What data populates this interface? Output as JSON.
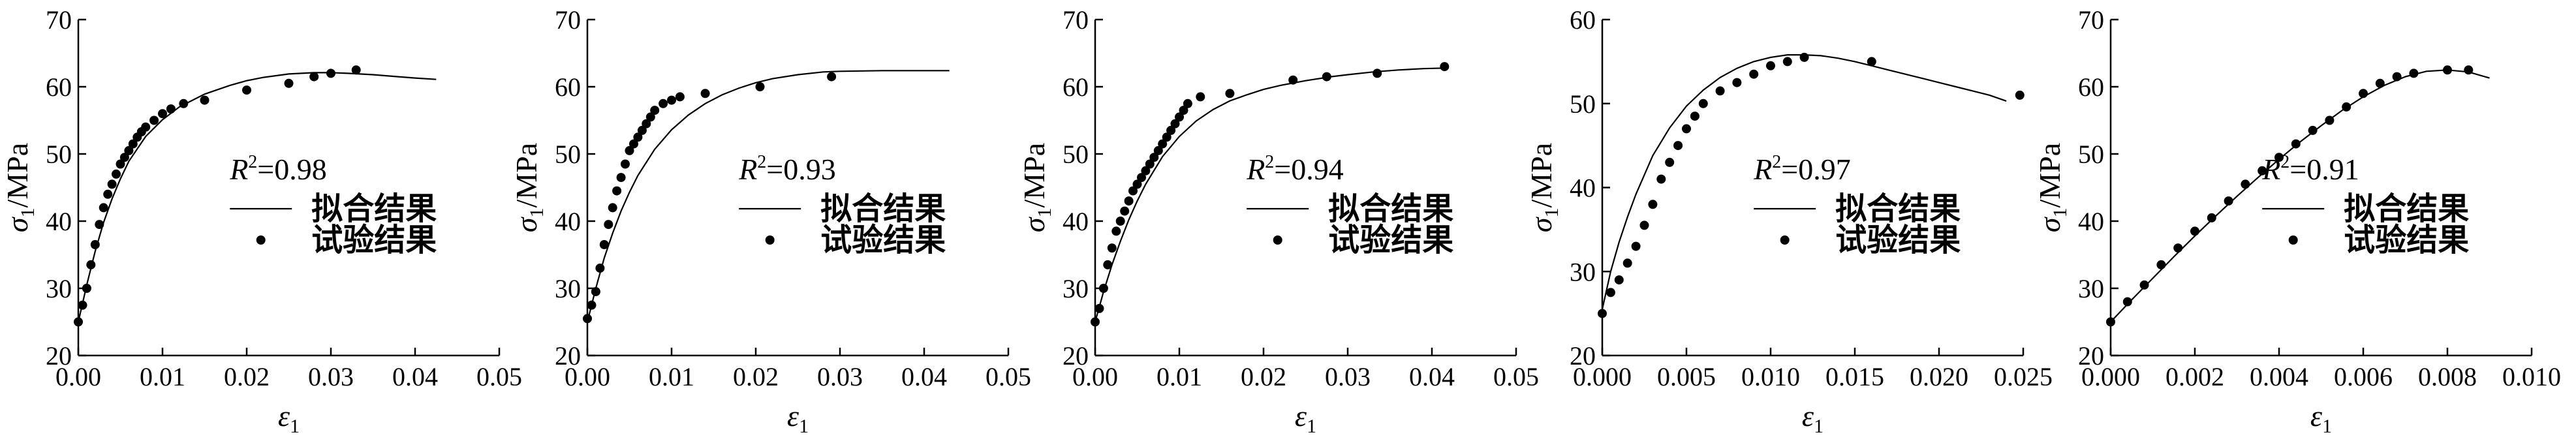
{
  "chart_data": [
    {
      "type": "scatter",
      "ylabel": "σ1/MPa",
      "xlabel": "ε1",
      "ylim": [
        20,
        70
      ],
      "yticks": [
        20,
        30,
        40,
        50,
        60,
        70
      ],
      "xlim": [
        0,
        0.05
      ],
      "xticks": [
        0,
        0.01,
        0.02,
        0.03,
        0.04,
        0.05
      ],
      "xtick_labels": [
        "0.00",
        "0.01",
        "0.02",
        "0.03",
        "0.04",
        "0.05"
      ],
      "r2": "0.98",
      "legend": {
        "fit": "拟合结果",
        "test": "试验结果"
      },
      "series": [
        {
          "name": "拟合结果",
          "kind": "line",
          "x": [
            0,
            0.001,
            0.002,
            0.003,
            0.004,
            0.005,
            0.006,
            0.008,
            0.01,
            0.012,
            0.015,
            0.018,
            0.02,
            0.022,
            0.025,
            0.028,
            0.03,
            0.032,
            0.035,
            0.038,
            0.04,
            0.0425
          ],
          "y": [
            25,
            30.5,
            35.5,
            39.8,
            43.3,
            46.3,
            48.9,
            52.6,
            55.1,
            57,
            58.9,
            60.2,
            60.9,
            61.4,
            61.9,
            62.1,
            62.1,
            62,
            61.8,
            61.5,
            61.3,
            61.1
          ]
        },
        {
          "name": "试验结果",
          "kind": "points",
          "x": [
            0.0,
            0.0005,
            0.001,
            0.0015,
            0.002,
            0.0025,
            0.003,
            0.0035,
            0.004,
            0.0045,
            0.005,
            0.0055,
            0.006,
            0.0065,
            0.007,
            0.0075,
            0.008,
            0.009,
            0.01,
            0.011,
            0.0125,
            0.015,
            0.02,
            0.025,
            0.028,
            0.03,
            0.033
          ],
          "y": [
            25,
            27.5,
            30,
            33.5,
            36.5,
            39.5,
            42,
            44,
            45.5,
            47,
            48.5,
            49.5,
            50.5,
            51.5,
            52.5,
            53.3,
            54,
            55,
            56,
            56.7,
            57.5,
            58,
            59.5,
            60.5,
            61.5,
            62,
            62.5
          ]
        }
      ]
    },
    {
      "type": "scatter",
      "ylabel": "σ1/MPa",
      "xlabel": "ε1",
      "ylim": [
        20,
        70
      ],
      "yticks": [
        20,
        30,
        40,
        50,
        60,
        70
      ],
      "xlim": [
        0,
        0.05
      ],
      "xticks": [
        0,
        0.01,
        0.02,
        0.03,
        0.04,
        0.05
      ],
      "xtick_labels": [
        "0.00",
        "0.01",
        "0.02",
        "0.03",
        "0.04",
        "0.05"
      ],
      "r2": "0.93",
      "legend": {
        "fit": "拟合结果",
        "test": "试验结果"
      },
      "series": [
        {
          "name": "拟合结果",
          "kind": "line",
          "x": [
            0,
            0.001,
            0.002,
            0.003,
            0.004,
            0.005,
            0.006,
            0.008,
            0.01,
            0.012,
            0.014,
            0.016,
            0.018,
            0.02,
            0.022,
            0.025,
            0.028,
            0.03,
            0.035,
            0.04,
            0.043
          ],
          "y": [
            25,
            30,
            34.5,
            38.2,
            41.5,
            44.3,
            46.8,
            50.7,
            53.6,
            55.8,
            57.5,
            58.8,
            59.8,
            60.6,
            61.2,
            61.8,
            62.2,
            62.3,
            62.4,
            62.4,
            62.4
          ]
        },
        {
          "name": "试验结果",
          "kind": "points",
          "x": [
            0.0,
            0.0005,
            0.001,
            0.0015,
            0.002,
            0.0025,
            0.003,
            0.0035,
            0.004,
            0.0045,
            0.005,
            0.0055,
            0.006,
            0.0065,
            0.007,
            0.0075,
            0.008,
            0.009,
            0.01,
            0.011,
            0.014,
            0.0205,
            0.029
          ],
          "y": [
            25.5,
            27.5,
            29.5,
            33,
            36.5,
            39.5,
            42,
            44.5,
            46.5,
            48.5,
            50.5,
            51.5,
            52.5,
            53.5,
            54.5,
            55.5,
            56.5,
            57.5,
            58,
            58.5,
            59,
            60,
            61.5
          ]
        }
      ]
    },
    {
      "type": "scatter",
      "ylabel": "σ1/MPa",
      "xlabel": "ε1",
      "ylim": [
        20,
        70
      ],
      "yticks": [
        20,
        30,
        40,
        50,
        60,
        70
      ],
      "xlim": [
        0,
        0.05
      ],
      "xticks": [
        0,
        0.01,
        0.02,
        0.03,
        0.04,
        0.05
      ],
      "xtick_labels": [
        "0.00",
        "0.01",
        "0.02",
        "0.03",
        "0.04",
        "0.05"
      ],
      "r2": "0.94",
      "legend": {
        "fit": "拟合结果",
        "test": "试验结果"
      },
      "series": [
        {
          "name": "拟合结果",
          "kind": "line",
          "x": [
            0,
            0.001,
            0.002,
            0.003,
            0.004,
            0.005,
            0.006,
            0.008,
            0.01,
            0.012,
            0.014,
            0.016,
            0.018,
            0.02,
            0.022,
            0.025,
            0.028,
            0.03,
            0.033,
            0.036,
            0.039,
            0.042
          ],
          "y": [
            25,
            29.5,
            33.5,
            37,
            40.2,
            43,
            45.5,
            49.6,
            52.6,
            54.9,
            56.6,
            57.9,
            58.8,
            59.6,
            60.2,
            60.9,
            61.5,
            61.8,
            62.2,
            62.5,
            62.7,
            62.8
          ]
        },
        {
          "name": "试验结果",
          "kind": "points",
          "x": [
            0.0,
            0.0005,
            0.001,
            0.0015,
            0.002,
            0.0025,
            0.003,
            0.0035,
            0.004,
            0.0045,
            0.005,
            0.0055,
            0.006,
            0.0065,
            0.007,
            0.0075,
            0.008,
            0.0085,
            0.009,
            0.0095,
            0.01,
            0.0105,
            0.011,
            0.0125,
            0.016,
            0.0235,
            0.0275,
            0.0335,
            0.0415
          ],
          "y": [
            25,
            27,
            30,
            33.5,
            36,
            38.5,
            40,
            41.5,
            43,
            44.5,
            45.5,
            46.5,
            47.5,
            48.5,
            49.5,
            50.5,
            51.5,
            52.5,
            53.5,
            54.5,
            55.5,
            56.5,
            57.5,
            58.5,
            59,
            61,
            61.5,
            62,
            63
          ]
        }
      ]
    },
    {
      "type": "scatter",
      "ylabel": "σ1/MPa",
      "xlabel": "ε1",
      "ylim": [
        20,
        60
      ],
      "yticks": [
        20,
        30,
        40,
        50,
        60
      ],
      "xlim": [
        0,
        0.025
      ],
      "xticks": [
        0,
        0.005,
        0.01,
        0.015,
        0.02,
        0.025
      ],
      "xtick_labels": [
        "0.000",
        "0.005",
        "0.010",
        "0.015",
        "0.020",
        "0.025"
      ],
      "r2": "0.97",
      "legend": {
        "fit": "拟合结果",
        "test": "试验结果"
      },
      "series": [
        {
          "name": "拟合结果",
          "kind": "line",
          "x": [
            0,
            0.0005,
            0.001,
            0.0015,
            0.002,
            0.003,
            0.004,
            0.005,
            0.006,
            0.007,
            0.008,
            0.009,
            0.01,
            0.011,
            0.012,
            0.013,
            0.014,
            0.015,
            0.016,
            0.017,
            0.018,
            0.019,
            0.02,
            0.021,
            0.022,
            0.023,
            0.024
          ],
          "y": [
            25.5,
            30,
            33.5,
            36.5,
            39.2,
            43.8,
            47.1,
            49.7,
            51.6,
            53.1,
            54.2,
            55,
            55.5,
            55.8,
            55.8,
            55.7,
            55.4,
            55,
            54.5,
            54,
            53.5,
            53,
            52.5,
            52,
            51.5,
            51,
            50.3
          ]
        },
        {
          "name": "试验结果",
          "kind": "points",
          "x": [
            0.0,
            0.0005,
            0.001,
            0.0015,
            0.002,
            0.0025,
            0.003,
            0.0035,
            0.004,
            0.0045,
            0.005,
            0.0055,
            0.006,
            0.007,
            0.008,
            0.009,
            0.01,
            0.011,
            0.012,
            0.016,
            0.0248
          ],
          "y": [
            25,
            27.5,
            29,
            31,
            33,
            35.5,
            38,
            41,
            43,
            45,
            47,
            48.5,
            50,
            51.5,
            52.5,
            53.5,
            54.5,
            55,
            55.5,
            55,
            51
          ]
        }
      ]
    },
    {
      "type": "scatter",
      "ylabel": "σ1/MPa",
      "xlabel": "ε1",
      "ylim": [
        20,
        70
      ],
      "yticks": [
        20,
        30,
        40,
        50,
        60,
        70
      ],
      "xlim": [
        0,
        0.01
      ],
      "xticks": [
        0,
        0.002,
        0.004,
        0.006,
        0.008,
        0.01
      ],
      "xtick_labels": [
        "0.000",
        "0.002",
        "0.004",
        "0.006",
        "0.008",
        "0.010"
      ],
      "r2": "0.91",
      "legend": {
        "fit": "拟合结果",
        "test": "试验结果"
      },
      "series": [
        {
          "name": "拟合结果",
          "kind": "line",
          "x": [
            0,
            0.0005,
            0.001,
            0.0015,
            0.002,
            0.0025,
            0.003,
            0.0035,
            0.004,
            0.0045,
            0.005,
            0.0055,
            0.006,
            0.0065,
            0.007,
            0.0075,
            0.008,
            0.0085,
            0.009
          ],
          "y": [
            25,
            28.3,
            31.5,
            34.7,
            37.8,
            40.8,
            43.7,
            46.5,
            49.2,
            51.8,
            54.2,
            56.5,
            58.5,
            60.2,
            61.5,
            62.3,
            62.5,
            62.2,
            61.3
          ]
        },
        {
          "name": "试验结果",
          "kind": "points",
          "x": [
            0.0,
            0.0004,
            0.0008,
            0.0012,
            0.0016,
            0.002,
            0.0024,
            0.0028,
            0.0032,
            0.0036,
            0.004,
            0.0044,
            0.0048,
            0.0052,
            0.0056,
            0.006,
            0.0064,
            0.0068,
            0.0072,
            0.008,
            0.0085
          ],
          "y": [
            25,
            28,
            30.5,
            33.5,
            36,
            38.5,
            40.5,
            43,
            45.5,
            47.5,
            49.5,
            51.5,
            53.5,
            55,
            57,
            59,
            60.5,
            61.5,
            62,
            62.5,
            62.5
          ]
        }
      ]
    }
  ]
}
